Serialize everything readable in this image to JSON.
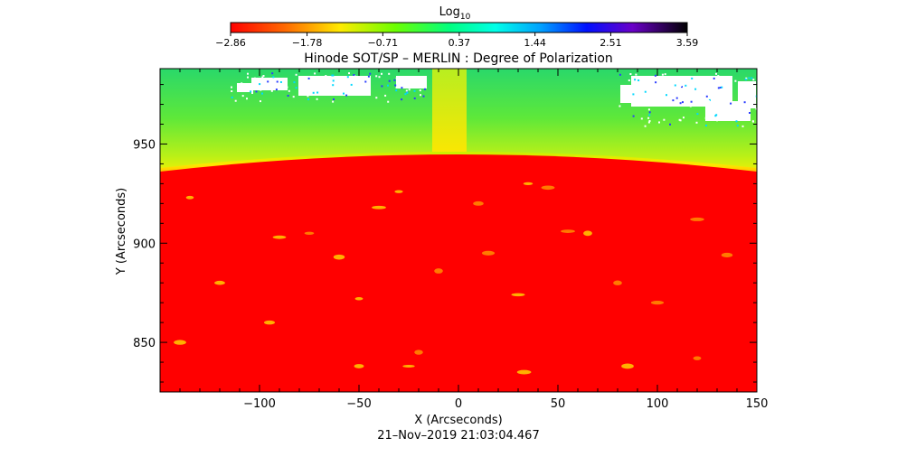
{
  "chart_data": {
    "type": "heatmap",
    "title": "Hinode SOT/SP – MERLIN : Degree of Polarization",
    "xlabel": "X (Arcseconds)",
    "ylabel": "Y (Arcseconds)",
    "timestamp": "21–Nov–2019 21:03:04.467",
    "xlim": [
      -150,
      150
    ],
    "ylim": [
      825,
      988
    ],
    "x_ticks": [
      {
        "value": -100,
        "label": "−100"
      },
      {
        "value": -50,
        "label": "−50"
      },
      {
        "value": 0,
        "label": "0"
      },
      {
        "value": 50,
        "label": "50"
      },
      {
        "value": 100,
        "label": "100"
      },
      {
        "value": 150,
        "label": "150"
      }
    ],
    "y_ticks": [
      {
        "value": 850,
        "label": "850"
      },
      {
        "value": 900,
        "label": "900"
      },
      {
        "value": 950,
        "label": "950"
      }
    ],
    "colorbar": {
      "label": "Log",
      "label_subscript": "10",
      "range": [
        -2.86,
        3.59
      ],
      "colormap": "rainbow (red → yellow → green → cyan → blue → purple → black)",
      "ticks": [
        {
          "value": -2.86,
          "label": "−2.86"
        },
        {
          "value": -1.78,
          "label": "−1.78"
        },
        {
          "value": -0.71,
          "label": "−0.71"
        },
        {
          "value": 0.37,
          "label": "0.37"
        },
        {
          "value": 1.44,
          "label": "1.44"
        },
        {
          "value": 2.51,
          "label": "2.51"
        },
        {
          "value": 3.59,
          "label": "3.59"
        }
      ]
    },
    "colors": {
      "disk": "#ff0000",
      "limb_band": "#ffe400",
      "off_limb": "#3ee84a",
      "saturated_missing": "#ffffff"
    }
  }
}
